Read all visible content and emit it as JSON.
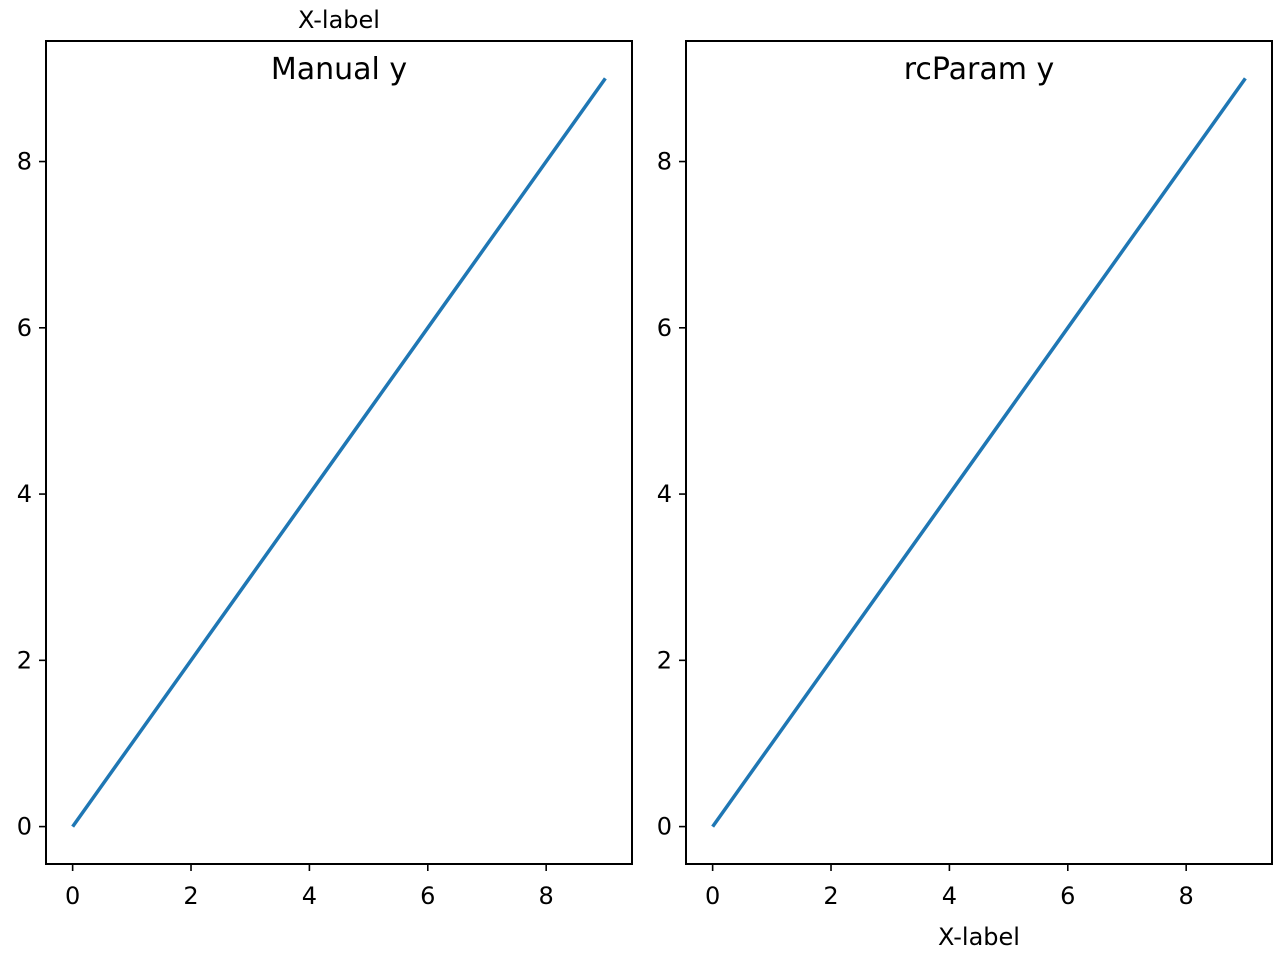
{
  "figure": {
    "background": "#ffffff",
    "line_color": "#1f77b4"
  },
  "chart_data": [
    {
      "type": "line",
      "title": "Manual y",
      "xlabel": "X-label",
      "xlabel_position": "top",
      "ylabel": "",
      "xlim": [
        -0.45,
        9.45
      ],
      "ylim": [
        -0.45,
        9.45
      ],
      "xticks": [
        0,
        2,
        4,
        6,
        8
      ],
      "yticks": [
        0,
        2,
        4,
        6,
        8
      ],
      "grid": false,
      "series": [
        {
          "x": [
            0,
            1,
            2,
            3,
            4,
            5,
            6,
            7,
            8,
            9
          ],
          "values": [
            0,
            1,
            2,
            3,
            4,
            5,
            6,
            7,
            8,
            9
          ]
        }
      ]
    },
    {
      "type": "line",
      "title": "rcParam y",
      "xlabel": "X-label",
      "xlabel_position": "bottom",
      "ylabel": "",
      "xlim": [
        -0.45,
        9.45
      ],
      "ylim": [
        -0.45,
        9.45
      ],
      "xticks": [
        0,
        2,
        4,
        6,
        8
      ],
      "yticks": [
        0,
        2,
        4,
        6,
        8
      ],
      "grid": false,
      "series": [
        {
          "x": [
            0,
            1,
            2,
            3,
            4,
            5,
            6,
            7,
            8,
            9
          ],
          "values": [
            0,
            1,
            2,
            3,
            4,
            5,
            6,
            7,
            8,
            9
          ]
        }
      ]
    }
  ]
}
